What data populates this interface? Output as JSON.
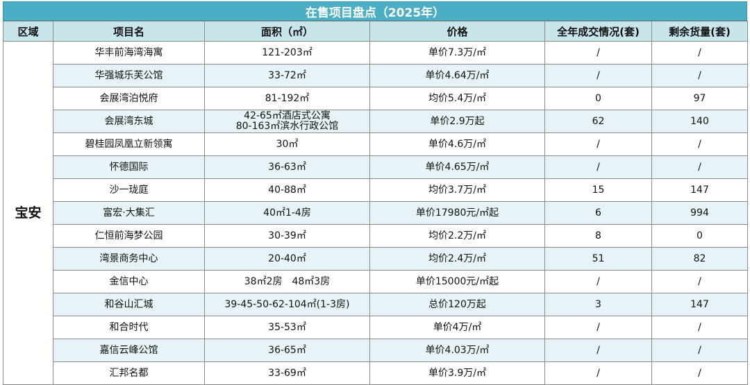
{
  "title": "在售项目盘点（2025年）",
  "headers": [
    "区域",
    "项目名",
    "面积（㎡）",
    "价格",
    "全年成交情况(套)",
    "剩余货量(套)"
  ],
  "region": "宝安",
  "rows": [
    {
      "name": "华丰前海湾海寓",
      "area": [
        "121-203㎡"
      ],
      "price": "单价7.3万/㎡",
      "sold": "/",
      "remain": "/"
    },
    {
      "name": "华强城乐芙公馆",
      "area": [
        "33-72㎡"
      ],
      "price": "单价4.64万/㎡",
      "sold": "/",
      "remain": "/"
    },
    {
      "name": "会展湾泊悦府",
      "area": [
        "81-192㎡"
      ],
      "price": "均价5.4万/㎡",
      "sold": "0",
      "remain": "97"
    },
    {
      "name": "会展湾东城",
      "area": [
        "42-65㎡酒店式公寓",
        "80-163㎡滨水行政公馆"
      ],
      "price": "单价2.9万起",
      "sold": "62",
      "remain": "140"
    },
    {
      "name": "碧桂园凤凰立新领寓",
      "area": [
        "30㎡"
      ],
      "price": "单价4.6万/㎡",
      "sold": "/",
      "remain": "/"
    },
    {
      "name": "怀德国际",
      "area": [
        "36-63㎡"
      ],
      "price": "单价4.65万/㎡",
      "sold": "/",
      "remain": "/"
    },
    {
      "name": "沙一珑庭",
      "area": [
        "40-88㎡"
      ],
      "price": "均价3.7万/㎡",
      "sold": "15",
      "remain": "147"
    },
    {
      "name": "富宏·大集汇",
      "area": [
        "40㎡1-4房"
      ],
      "price": "单价17980元/㎡起",
      "sold": "6",
      "remain": "994"
    },
    {
      "name": "仁恒前海梦公园",
      "area": [
        "30-39㎡"
      ],
      "price": "均价2.2万/㎡",
      "sold": "8",
      "remain": "0"
    },
    {
      "name": "湾景商务中心",
      "area": [
        "20-40㎡"
      ],
      "price": "均价2.4万/㎡",
      "sold": "51",
      "remain": "82"
    },
    {
      "name": "金信中心",
      "area": [
        "38㎡2房　48㎡3房"
      ],
      "price": "单价15000元/㎡起",
      "sold": "/",
      "remain": "/"
    },
    {
      "name": "和谷山汇城",
      "area": [
        "39-45-50-62-104㎡(1-3房)"
      ],
      "price": "总价120万起",
      "sold": "3",
      "remain": "147"
    },
    {
      "name": "和合时代",
      "area": [
        "35-53㎡"
      ],
      "price": "单价4万/㎡",
      "sold": "/",
      "remain": "/"
    },
    {
      "name": "嘉信云峰公馆",
      "area": [
        "36-65㎡"
      ],
      "price": "单价4.03万/㎡",
      "sold": "/",
      "remain": "/"
    },
    {
      "name": "汇邦名都",
      "area": [
        "33-69㎡"
      ],
      "price": "单价3.9万/㎡",
      "sold": "/",
      "remain": "/"
    }
  ]
}
